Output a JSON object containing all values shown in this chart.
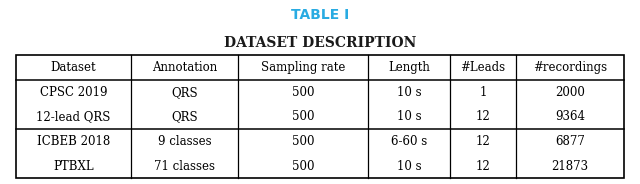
{
  "title": "TABLE I",
  "subtitle": "Dataset Description",
  "title_color": "#29ABE2",
  "subtitle_color": "#1a1a1a",
  "columns": [
    "Dataset",
    "Annotation",
    "Sampling rate",
    "Length",
    "#Leads",
    "#recordings"
  ],
  "rows": [
    [
      "CPSC 2019",
      "QRS",
      "500",
      "10 s",
      "1",
      "2000"
    ],
    [
      "12-lead QRS",
      "QRS",
      "500",
      "10 s",
      "12",
      "9364"
    ],
    [
      "ICBEB 2018",
      "9 classes",
      "500",
      "6-60 s",
      "12",
      "6877"
    ],
    [
      "PTBXL",
      "71 classes",
      "500",
      "10 s",
      "12",
      "21873"
    ]
  ],
  "col_widths_rel": [
    1.55,
    1.45,
    1.75,
    1.1,
    0.9,
    1.45
  ],
  "figsize": [
    6.4,
    1.84
  ],
  "dpi": 100,
  "background_color": "#ffffff",
  "group_separator_after_row": 2,
  "title_fontsize": 10,
  "subtitle_fontsize": 10,
  "cell_fontsize": 8.5
}
